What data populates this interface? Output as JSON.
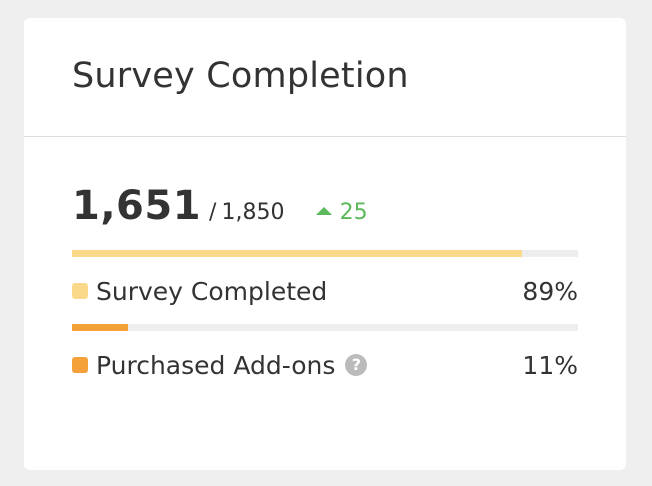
{
  "card": {
    "title": "Survey Completion"
  },
  "totals": {
    "value": "1,651",
    "separator": "/",
    "max": "1,850",
    "delta": "25",
    "delta_icon": "triangle-up-icon",
    "delta_color": "#5cb85c"
  },
  "metrics": [
    {
      "label": "Survey Completed",
      "percent": "89%",
      "fraction": 0.89,
      "color": "#fbd98a"
    },
    {
      "label": "Purchased Add-ons",
      "percent": "11%",
      "fraction": 0.11,
      "color": "#f5a13a",
      "help_icon": "question-circle-icon",
      "help_glyph": "?"
    }
  ]
}
